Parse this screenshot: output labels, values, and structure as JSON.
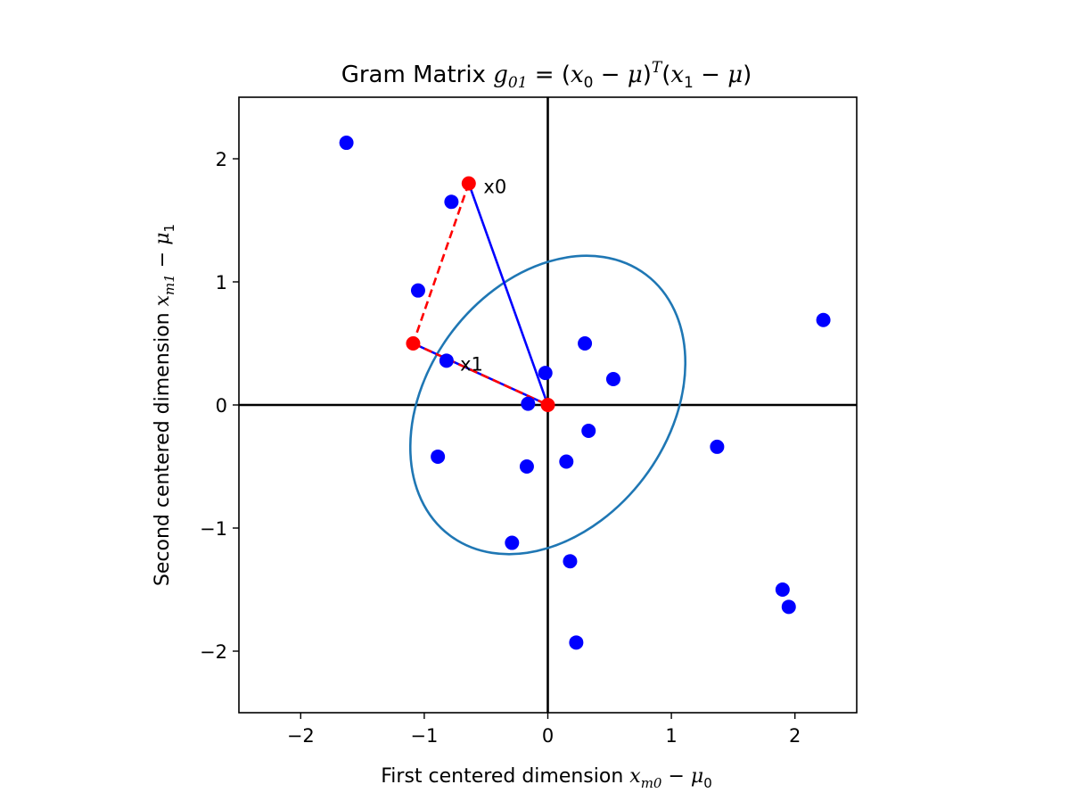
{
  "chart_data": {
    "type": "scatter",
    "title": {
      "prefix": "Gram Matrix ",
      "g": "g",
      "g_sub": "01",
      "eq": " = (",
      "x0": "x",
      "x0_sub": "0",
      "minus1": " − ",
      "mu1": "μ",
      "close1": ")",
      "sup": "T",
      "open2": "(",
      "x1": "x",
      "x1_sub": "1",
      "minus2": " − ",
      "mu2": "μ",
      "close2": ")"
    },
    "xlabel": {
      "text": "First centered dimension ",
      "var": "x",
      "var_sub": "m0",
      "minus": " − ",
      "mu": "μ",
      "mu_sub": "0"
    },
    "ylabel": {
      "text": "Second centered dimension ",
      "var": "x",
      "var_sub": "m1",
      "minus": " − ",
      "mu": "μ",
      "mu_sub": "1"
    },
    "xlim": [
      -2.5,
      2.5
    ],
    "ylim": [
      -2.5,
      2.5
    ],
    "xticks": [
      -2,
      -1,
      0,
      1,
      2
    ],
    "yticks": [
      -2,
      -1,
      0,
      1,
      2
    ],
    "xtick_labels": [
      "−2",
      "−1",
      "0",
      "1",
      "2"
    ],
    "ytick_labels": [
      "−2",
      "−1",
      "0",
      "1",
      "2"
    ],
    "grid": false,
    "points": [
      {
        "x": -1.63,
        "y": 2.13
      },
      {
        "x": -0.78,
        "y": 1.65
      },
      {
        "x": -1.05,
        "y": 0.93
      },
      {
        "x": -0.82,
        "y": 0.36
      },
      {
        "x": -0.02,
        "y": 0.26
      },
      {
        "x": 0.3,
        "y": 0.5
      },
      {
        "x": 0.53,
        "y": 0.21
      },
      {
        "x": -0.16,
        "y": 0.01
      },
      {
        "x": 2.23,
        "y": 0.69
      },
      {
        "x": 0.33,
        "y": -0.21
      },
      {
        "x": -0.89,
        "y": -0.42
      },
      {
        "x": -0.17,
        "y": -0.5
      },
      {
        "x": 0.15,
        "y": -0.46
      },
      {
        "x": 1.37,
        "y": -0.34
      },
      {
        "x": -0.29,
        "y": -1.12
      },
      {
        "x": 0.18,
        "y": -1.27
      },
      {
        "x": 1.9,
        "y": -1.5
      },
      {
        "x": 1.95,
        "y": -1.64
      },
      {
        "x": 0.23,
        "y": -1.93
      }
    ],
    "points_color": "#0000ff",
    "highlight_points": [
      {
        "x": -0.64,
        "y": 1.8
      },
      {
        "x": -1.09,
        "y": 0.5
      },
      {
        "x": 0.0,
        "y": 0.0
      }
    ],
    "highlight_color": "#ff0000",
    "annotations": [
      {
        "text": "x0",
        "x": -0.52,
        "y": 1.77
      },
      {
        "text": "x1",
        "x": -0.71,
        "y": 0.33
      }
    ],
    "vectors": [
      {
        "from": [
          0,
          0
        ],
        "to": [
          -0.64,
          1.8
        ],
        "color": "#0000ff",
        "style": "solid"
      },
      {
        "from": [
          0,
          0
        ],
        "to": [
          -1.09,
          0.5
        ],
        "color": "#0000ff",
        "style": "solid"
      },
      {
        "from": [
          -0.64,
          1.8
        ],
        "to": [
          -1.09,
          0.5
        ],
        "color": "#ff0000",
        "style": "dashed"
      },
      {
        "from": [
          -1.09,
          0.5
        ],
        "to": [
          0,
          0
        ],
        "color": "#ff0000",
        "style": "dashed"
      }
    ],
    "ellipse": {
      "cx": 0.0,
      "cy": 0.0,
      "rx": 1.32,
      "ry": 0.98,
      "angle_deg": -53,
      "color": "#1f77b4"
    },
    "zero_lines_color": "#000000"
  }
}
